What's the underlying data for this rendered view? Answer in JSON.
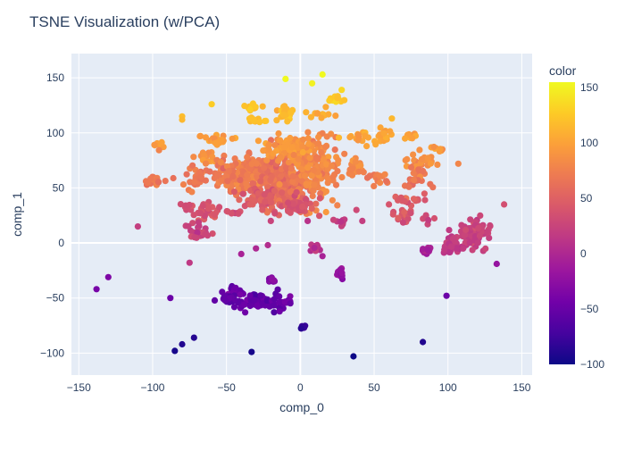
{
  "chart_data": {
    "type": "scatter",
    "title": "TSNE Visualization (w/PCA)",
    "xlabel": "comp_0",
    "ylabel": "comp_1",
    "xlim": [
      -155,
      157
    ],
    "ylim": [
      -120,
      172
    ],
    "xticks": [
      -150,
      -100,
      -50,
      0,
      50,
      100,
      150
    ],
    "yticks": [
      -100,
      -50,
      0,
      50,
      100,
      150
    ],
    "grid": true,
    "colorbar": {
      "title": "color",
      "min": -100,
      "max": 155,
      "ticks": [
        -100,
        -50,
        0,
        50,
        100,
        150
      ],
      "colorscale": [
        "#0d0887",
        "#46039f",
        "#7201a8",
        "#9c179e",
        "#bd3786",
        "#d8576b",
        "#ed7953",
        "#fb9f3a",
        "#fdca26",
        "#f0f921"
      ]
    },
    "colors": {
      "plot_bg": "#e5ecf6",
      "grid": "#ffffff",
      "text": "#2a3f5f"
    },
    "clusters": [
      {
        "x": -10,
        "y": 118,
        "sx": 3,
        "sy": 3,
        "n": 30,
        "color": 118
      },
      {
        "x": -33,
        "y": 123,
        "sx": 3,
        "sy": 2,
        "n": 15,
        "color": 120
      },
      {
        "x": -30,
        "y": 112,
        "sx": 3,
        "sy": 2,
        "n": 10,
        "color": 118
      },
      {
        "x": 25,
        "y": 132,
        "sx": 3,
        "sy": 2,
        "n": 12,
        "color": 128
      },
      {
        "x": 15,
        "y": 118,
        "sx": 4,
        "sy": 2,
        "n": 12,
        "color": 110
      },
      {
        "x": -55,
        "y": 93,
        "sx": 6,
        "sy": 3,
        "n": 22,
        "color": 95
      },
      {
        "x": -63,
        "y": 78,
        "sx": 3,
        "sy": 3,
        "n": 15,
        "color": 90
      },
      {
        "x": -98,
        "y": 88,
        "sx": 4,
        "sy": 2,
        "n": 8,
        "color": 95
      },
      {
        "x": -40,
        "y": 62,
        "sx": 10,
        "sy": 8,
        "n": 180,
        "color": 72
      },
      {
        "x": -12,
        "y": 55,
        "sx": 9,
        "sy": 12,
        "n": 230,
        "color": 62
      },
      {
        "x": 10,
        "y": 70,
        "sx": 9,
        "sy": 15,
        "n": 180,
        "color": 80
      },
      {
        "x": -8,
        "y": 85,
        "sx": 7,
        "sy": 6,
        "n": 80,
        "color": 92
      },
      {
        "x": -25,
        "y": 40,
        "sx": 8,
        "sy": 5,
        "n": 60,
        "color": 45
      },
      {
        "x": 0,
        "y": 35,
        "sx": 5,
        "sy": 5,
        "n": 40,
        "color": 40
      },
      {
        "x": -100,
        "y": 57,
        "sx": 3,
        "sy": 2,
        "n": 18,
        "color": 72
      },
      {
        "x": -72,
        "y": 57,
        "sx": 6,
        "sy": 4,
        "n": 25,
        "color": 68
      },
      {
        "x": -63,
        "y": 28,
        "sx": 4,
        "sy": 4,
        "n": 25,
        "color": 40
      },
      {
        "x": -75,
        "y": 32,
        "sx": 3,
        "sy": 2,
        "n": 8,
        "color": 35
      },
      {
        "x": -45,
        "y": 28,
        "sx": 3,
        "sy": 1,
        "n": 8,
        "color": 40
      },
      {
        "x": -70,
        "y": 10,
        "sx": 4,
        "sy": 4,
        "n": 28,
        "color": 25
      },
      {
        "x": 45,
        "y": 95,
        "sx": 6,
        "sy": 3,
        "n": 25,
        "color": 100
      },
      {
        "x": 58,
        "y": 100,
        "sx": 3,
        "sy": 2,
        "n": 8,
        "color": 105
      },
      {
        "x": 75,
        "y": 97,
        "sx": 3,
        "sy": 2,
        "n": 8,
        "color": 100
      },
      {
        "x": 38,
        "y": 72,
        "sx": 3,
        "sy": 2,
        "n": 10,
        "color": 85
      },
      {
        "x": 38,
        "y": 65,
        "sx": 3,
        "sy": 2,
        "n": 10,
        "color": 78
      },
      {
        "x": 52,
        "y": 60,
        "sx": 4,
        "sy": 3,
        "n": 15,
        "color": 72
      },
      {
        "x": 80,
        "y": 75,
        "sx": 6,
        "sy": 4,
        "n": 22,
        "color": 85
      },
      {
        "x": 93,
        "y": 85,
        "sx": 3,
        "sy": 2,
        "n": 8,
        "color": 92
      },
      {
        "x": 80,
        "y": 58,
        "sx": 4,
        "sy": 4,
        "n": 25,
        "color": 68
      },
      {
        "x": 70,
        "y": 24,
        "sx": 4,
        "sy": 3,
        "n": 20,
        "color": 38
      },
      {
        "x": 70,
        "y": 40,
        "sx": 3,
        "sy": 2,
        "n": 10,
        "color": 45
      },
      {
        "x": 80,
        "y": 40,
        "sx": 3,
        "sy": 2,
        "n": 8,
        "color": 48
      },
      {
        "x": 115,
        "y": 5,
        "sx": 6,
        "sy": 6,
        "n": 70,
        "color": 20
      },
      {
        "x": 102,
        "y": -5,
        "sx": 4,
        "sy": 3,
        "n": 20,
        "color": 15
      },
      {
        "x": 120,
        "y": 15,
        "sx": 3,
        "sy": 4,
        "n": 20,
        "color": 25
      },
      {
        "x": 86,
        "y": -7,
        "sx": 1.5,
        "sy": 1.5,
        "n": 15,
        "color": -2
      },
      {
        "x": 28,
        "y": -27,
        "sx": 2,
        "sy": 2,
        "n": 15,
        "color": -20
      },
      {
        "x": -33,
        "y": -52,
        "sx": 8,
        "sy": 4,
        "n": 50,
        "color": -52
      },
      {
        "x": -15,
        "y": -55,
        "sx": 4,
        "sy": 4,
        "n": 25,
        "color": -50
      },
      {
        "x": -45,
        "y": -42,
        "sx": 3,
        "sy": 3,
        "n": 15,
        "color": -45
      },
      {
        "x": -20,
        "y": -34,
        "sx": 1.5,
        "sy": 1.5,
        "n": 10,
        "color": -35
      },
      {
        "x": -50,
        "y": -48,
        "sx": 3,
        "sy": 3,
        "n": 15,
        "color": -55
      },
      {
        "x": 2,
        "y": -77,
        "sx": 1,
        "sy": 1,
        "n": 8,
        "color": -80
      },
      {
        "x": 10,
        "y": -5,
        "sx": 2,
        "sy": 2,
        "n": 10,
        "color": 12
      },
      {
        "x": 28,
        "y": 20,
        "sx": 3,
        "sy": 2,
        "n": 8,
        "color": 22
      },
      {
        "x": 88,
        "y": 22,
        "sx": 2,
        "sy": 2,
        "n": 6,
        "color": 30
      }
    ],
    "points": [
      [
        -10,
        149,
        155
      ],
      [
        15,
        153,
        155
      ],
      [
        8,
        145,
        150
      ],
      [
        -60,
        126,
        128
      ],
      [
        -80,
        115,
        118
      ],
      [
        -80,
        112,
        115
      ],
      [
        28,
        139,
        135
      ],
      [
        62,
        113,
        115
      ],
      [
        -110,
        15,
        20
      ],
      [
        -75,
        -18,
        15
      ],
      [
        -138,
        -42,
        -40
      ],
      [
        -130,
        -31,
        -35
      ],
      [
        -88,
        -50,
        -48
      ],
      [
        -85,
        -98,
        -95
      ],
      [
        -80,
        -92,
        -90
      ],
      [
        -72,
        -86,
        -88
      ],
      [
        -33,
        -99,
        -95
      ],
      [
        -40,
        -10,
        -5
      ],
      [
        -30,
        -5,
        0
      ],
      [
        -22,
        -2,
        5
      ],
      [
        36,
        -103,
        -100
      ],
      [
        83,
        -90,
        -90
      ],
      [
        99,
        -48,
        -48
      ],
      [
        133,
        -19,
        -20
      ],
      [
        138,
        35,
        35
      ],
      [
        107,
        72,
        80
      ],
      [
        -20,
        20,
        25
      ],
      [
        5,
        20,
        10
      ],
      [
        15,
        -12,
        -5
      ],
      [
        42,
        20,
        20
      ],
      [
        38,
        30,
        30
      ],
      [
        60,
        35,
        40
      ]
    ]
  }
}
